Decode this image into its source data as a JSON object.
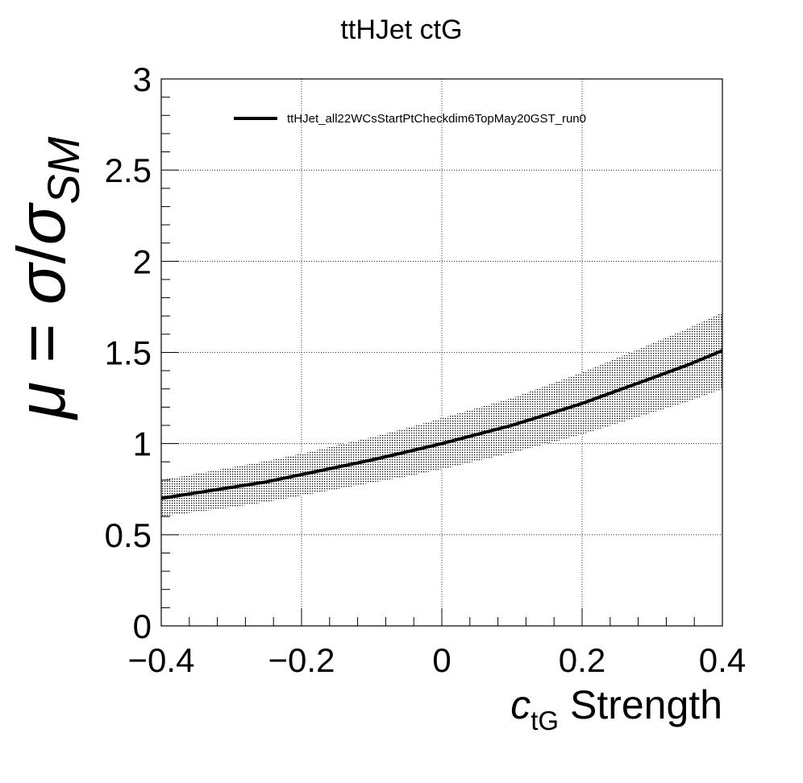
{
  "chart_data": {
    "type": "line",
    "title": "ttHJet ctG",
    "xlabel": {
      "main": "c",
      "sub": "tG",
      "rest": " Strength"
    },
    "ylabel": {
      "mu": "μ",
      "eq": " = ",
      "sigma": "σ",
      "slash": "/",
      "sigma2": "σ",
      "sub": "SM"
    },
    "xlim": [
      -0.4,
      0.4
    ],
    "ylim": [
      0,
      3
    ],
    "x_ticks": [
      -0.4,
      -0.2,
      0,
      0.2,
      0.4
    ],
    "x_tick_labels": [
      "−0.4",
      "−0.2",
      "0",
      "0.2",
      "0.4"
    ],
    "y_ticks": [
      0,
      0.5,
      1,
      1.5,
      2,
      2.5,
      3
    ],
    "y_tick_labels": [
      "0",
      "0.5",
      "1",
      "1.5",
      "2",
      "2.5",
      "3"
    ],
    "grid": true,
    "legend_position": "top",
    "series": [
      {
        "name": "ttHJet_all22WCsStartPtCheckdim6TopMay20GST_run0",
        "color": "#000000",
        "x": [
          -0.4,
          -0.35,
          -0.3,
          -0.25,
          -0.2,
          -0.15,
          -0.1,
          -0.05,
          0,
          0.05,
          0.1,
          0.15,
          0.2,
          0.25,
          0.3,
          0.35,
          0.4
        ],
        "y": [
          0.7,
          0.73,
          0.76,
          0.79,
          0.83,
          0.87,
          0.91,
          0.955,
          1.0,
          1.05,
          1.1,
          1.16,
          1.22,
          1.29,
          1.36,
          1.43,
          1.51
        ],
        "band_low": [
          0.6,
          0.625,
          0.65,
          0.68,
          0.715,
          0.75,
          0.785,
          0.82,
          0.86,
          0.905,
          0.95,
          1.0,
          1.05,
          1.11,
          1.17,
          1.23,
          1.3
        ],
        "band_high": [
          0.8,
          0.835,
          0.87,
          0.905,
          0.945,
          0.99,
          1.035,
          1.085,
          1.14,
          1.195,
          1.25,
          1.32,
          1.39,
          1.47,
          1.55,
          1.63,
          1.72
        ]
      }
    ]
  }
}
